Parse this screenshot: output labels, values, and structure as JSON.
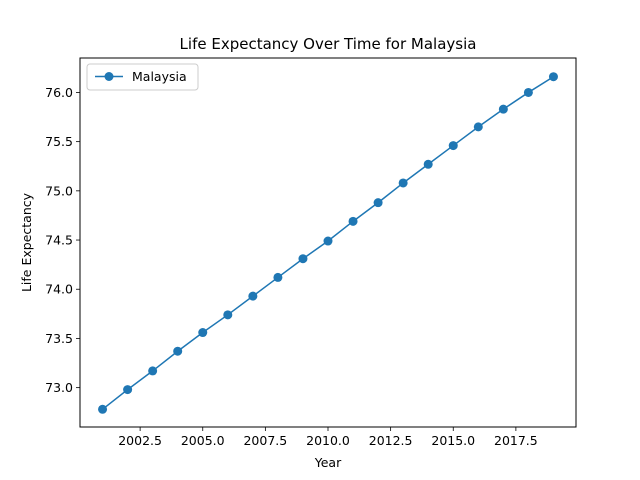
{
  "chart_data": {
    "type": "line",
    "title": "Life Expectancy Over Time for Malaysia",
    "xlabel": "Year",
    "ylabel": "Life Expectancy",
    "x": [
      2001,
      2002,
      2003,
      2004,
      2005,
      2006,
      2007,
      2008,
      2009,
      2010,
      2011,
      2012,
      2013,
      2014,
      2015,
      2016,
      2017,
      2018,
      2019
    ],
    "series": [
      {
        "name": "Malaysia",
        "color": "#1f77b4",
        "marker": "circle",
        "values": [
          72.78,
          72.98,
          73.17,
          73.37,
          73.56,
          73.74,
          73.93,
          74.12,
          74.31,
          74.49,
          74.69,
          74.88,
          75.08,
          75.27,
          75.46,
          75.65,
          75.83,
          76.0,
          76.16
        ]
      }
    ],
    "xlim": [
      2000.1,
      2019.9
    ],
    "ylim": [
      72.6,
      76.35
    ],
    "xticks": [
      2002.5,
      2005.0,
      2007.5,
      2010.0,
      2012.5,
      2015.0,
      2017.5
    ],
    "xtick_labels": [
      "2002.5",
      "2005.0",
      "2007.5",
      "2010.0",
      "2012.5",
      "2015.0",
      "2017.5"
    ],
    "yticks": [
      73.0,
      73.5,
      74.0,
      74.5,
      75.0,
      75.5,
      76.0
    ],
    "ytick_labels": [
      "73.0",
      "73.5",
      "74.0",
      "74.5",
      "75.0",
      "75.5",
      "76.0"
    ],
    "grid": false,
    "legend_position": "upper-left"
  }
}
